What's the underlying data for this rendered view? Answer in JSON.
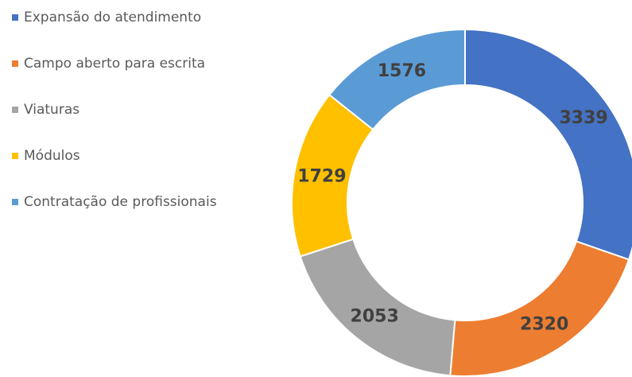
{
  "chart_data": {
    "type": "donut",
    "categories": [
      "Expansão do atendimento",
      "Campo aberto para escrita",
      "Viaturas",
      "Módulos",
      "Contratação de profissionais"
    ],
    "values": [
      3339,
      2320,
      2053,
      1729,
      1576
    ],
    "colors": [
      "#4472c4",
      "#ed7d31",
      "#a5a5a5",
      "#ffc000",
      "#5b9bd5"
    ],
    "legend": "left"
  }
}
